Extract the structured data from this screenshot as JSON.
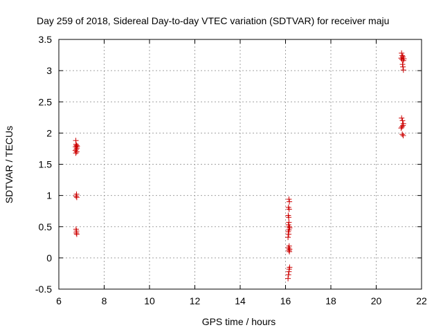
{
  "chart_data": {
    "type": "scatter",
    "title": "Day 259 of 2018, Sidereal Day-to-day VTEC variation (SDTVAR) for receiver maju",
    "xlabel": "GPS time / hours",
    "ylabel": "SDTVAR / TECUs",
    "xlim": [
      6,
      22
    ],
    "ylim": [
      -0.5,
      3.5
    ],
    "xticks": [
      "6",
      "8",
      "10",
      "12",
      "14",
      "16",
      "18",
      "20",
      "22"
    ],
    "yticks": [
      "-0.5",
      "0",
      "0.5",
      "1",
      "1.5",
      "2",
      "2.5",
      "3",
      "3.5"
    ],
    "grid": true,
    "marker": "+",
    "marker_color": "#cc0000",
    "series": [
      {
        "name": "SDTVAR",
        "points": [
          [
            6.75,
            1.88
          ],
          [
            6.76,
            1.82
          ],
          [
            6.78,
            1.8
          ],
          [
            6.74,
            1.78
          ],
          [
            6.8,
            1.76
          ],
          [
            6.77,
            1.74
          ],
          [
            6.73,
            1.72
          ],
          [
            6.79,
            1.7
          ],
          [
            6.75,
            1.68
          ],
          [
            6.81,
            1.79
          ],
          [
            6.78,
            1.02
          ],
          [
            6.76,
            0.99
          ],
          [
            6.79,
            0.97
          ],
          [
            6.76,
            0.46
          ],
          [
            6.78,
            0.43
          ],
          [
            6.77,
            0.4
          ],
          [
            6.79,
            0.38
          ],
          [
            16.15,
            0.94
          ],
          [
            16.17,
            0.9
          ],
          [
            16.13,
            0.81
          ],
          [
            16.16,
            0.78
          ],
          [
            16.12,
            0.68
          ],
          [
            16.14,
            0.65
          ],
          [
            16.15,
            0.57
          ],
          [
            16.13,
            0.53
          ],
          [
            16.16,
            0.5
          ],
          [
            16.18,
            0.48
          ],
          [
            16.15,
            0.45
          ],
          [
            16.12,
            0.42
          ],
          [
            16.14,
            0.38
          ],
          [
            16.11,
            0.33
          ],
          [
            16.16,
            0.19
          ],
          [
            16.13,
            0.16
          ],
          [
            16.18,
            0.14
          ],
          [
            16.15,
            0.12
          ],
          [
            16.17,
            0.1
          ],
          [
            16.18,
            -0.15
          ],
          [
            16.16,
            -0.18
          ],
          [
            16.15,
            -0.22
          ],
          [
            16.13,
            -0.27
          ],
          [
            16.11,
            -0.33
          ],
          [
            21.12,
            3.28
          ],
          [
            21.15,
            3.24
          ],
          [
            21.18,
            3.22
          ],
          [
            21.1,
            3.2
          ],
          [
            21.22,
            3.19
          ],
          [
            21.14,
            3.18
          ],
          [
            21.2,
            3.16
          ],
          [
            21.16,
            3.1
          ],
          [
            21.18,
            3.06
          ],
          [
            21.2,
            3.01
          ],
          [
            21.12,
            2.24
          ],
          [
            21.16,
            2.2
          ],
          [
            21.2,
            2.15
          ],
          [
            21.18,
            2.12
          ],
          [
            21.14,
            2.1
          ],
          [
            21.1,
            2.08
          ],
          [
            21.15,
            1.98
          ],
          [
            21.19,
            1.96
          ]
        ]
      }
    ]
  }
}
